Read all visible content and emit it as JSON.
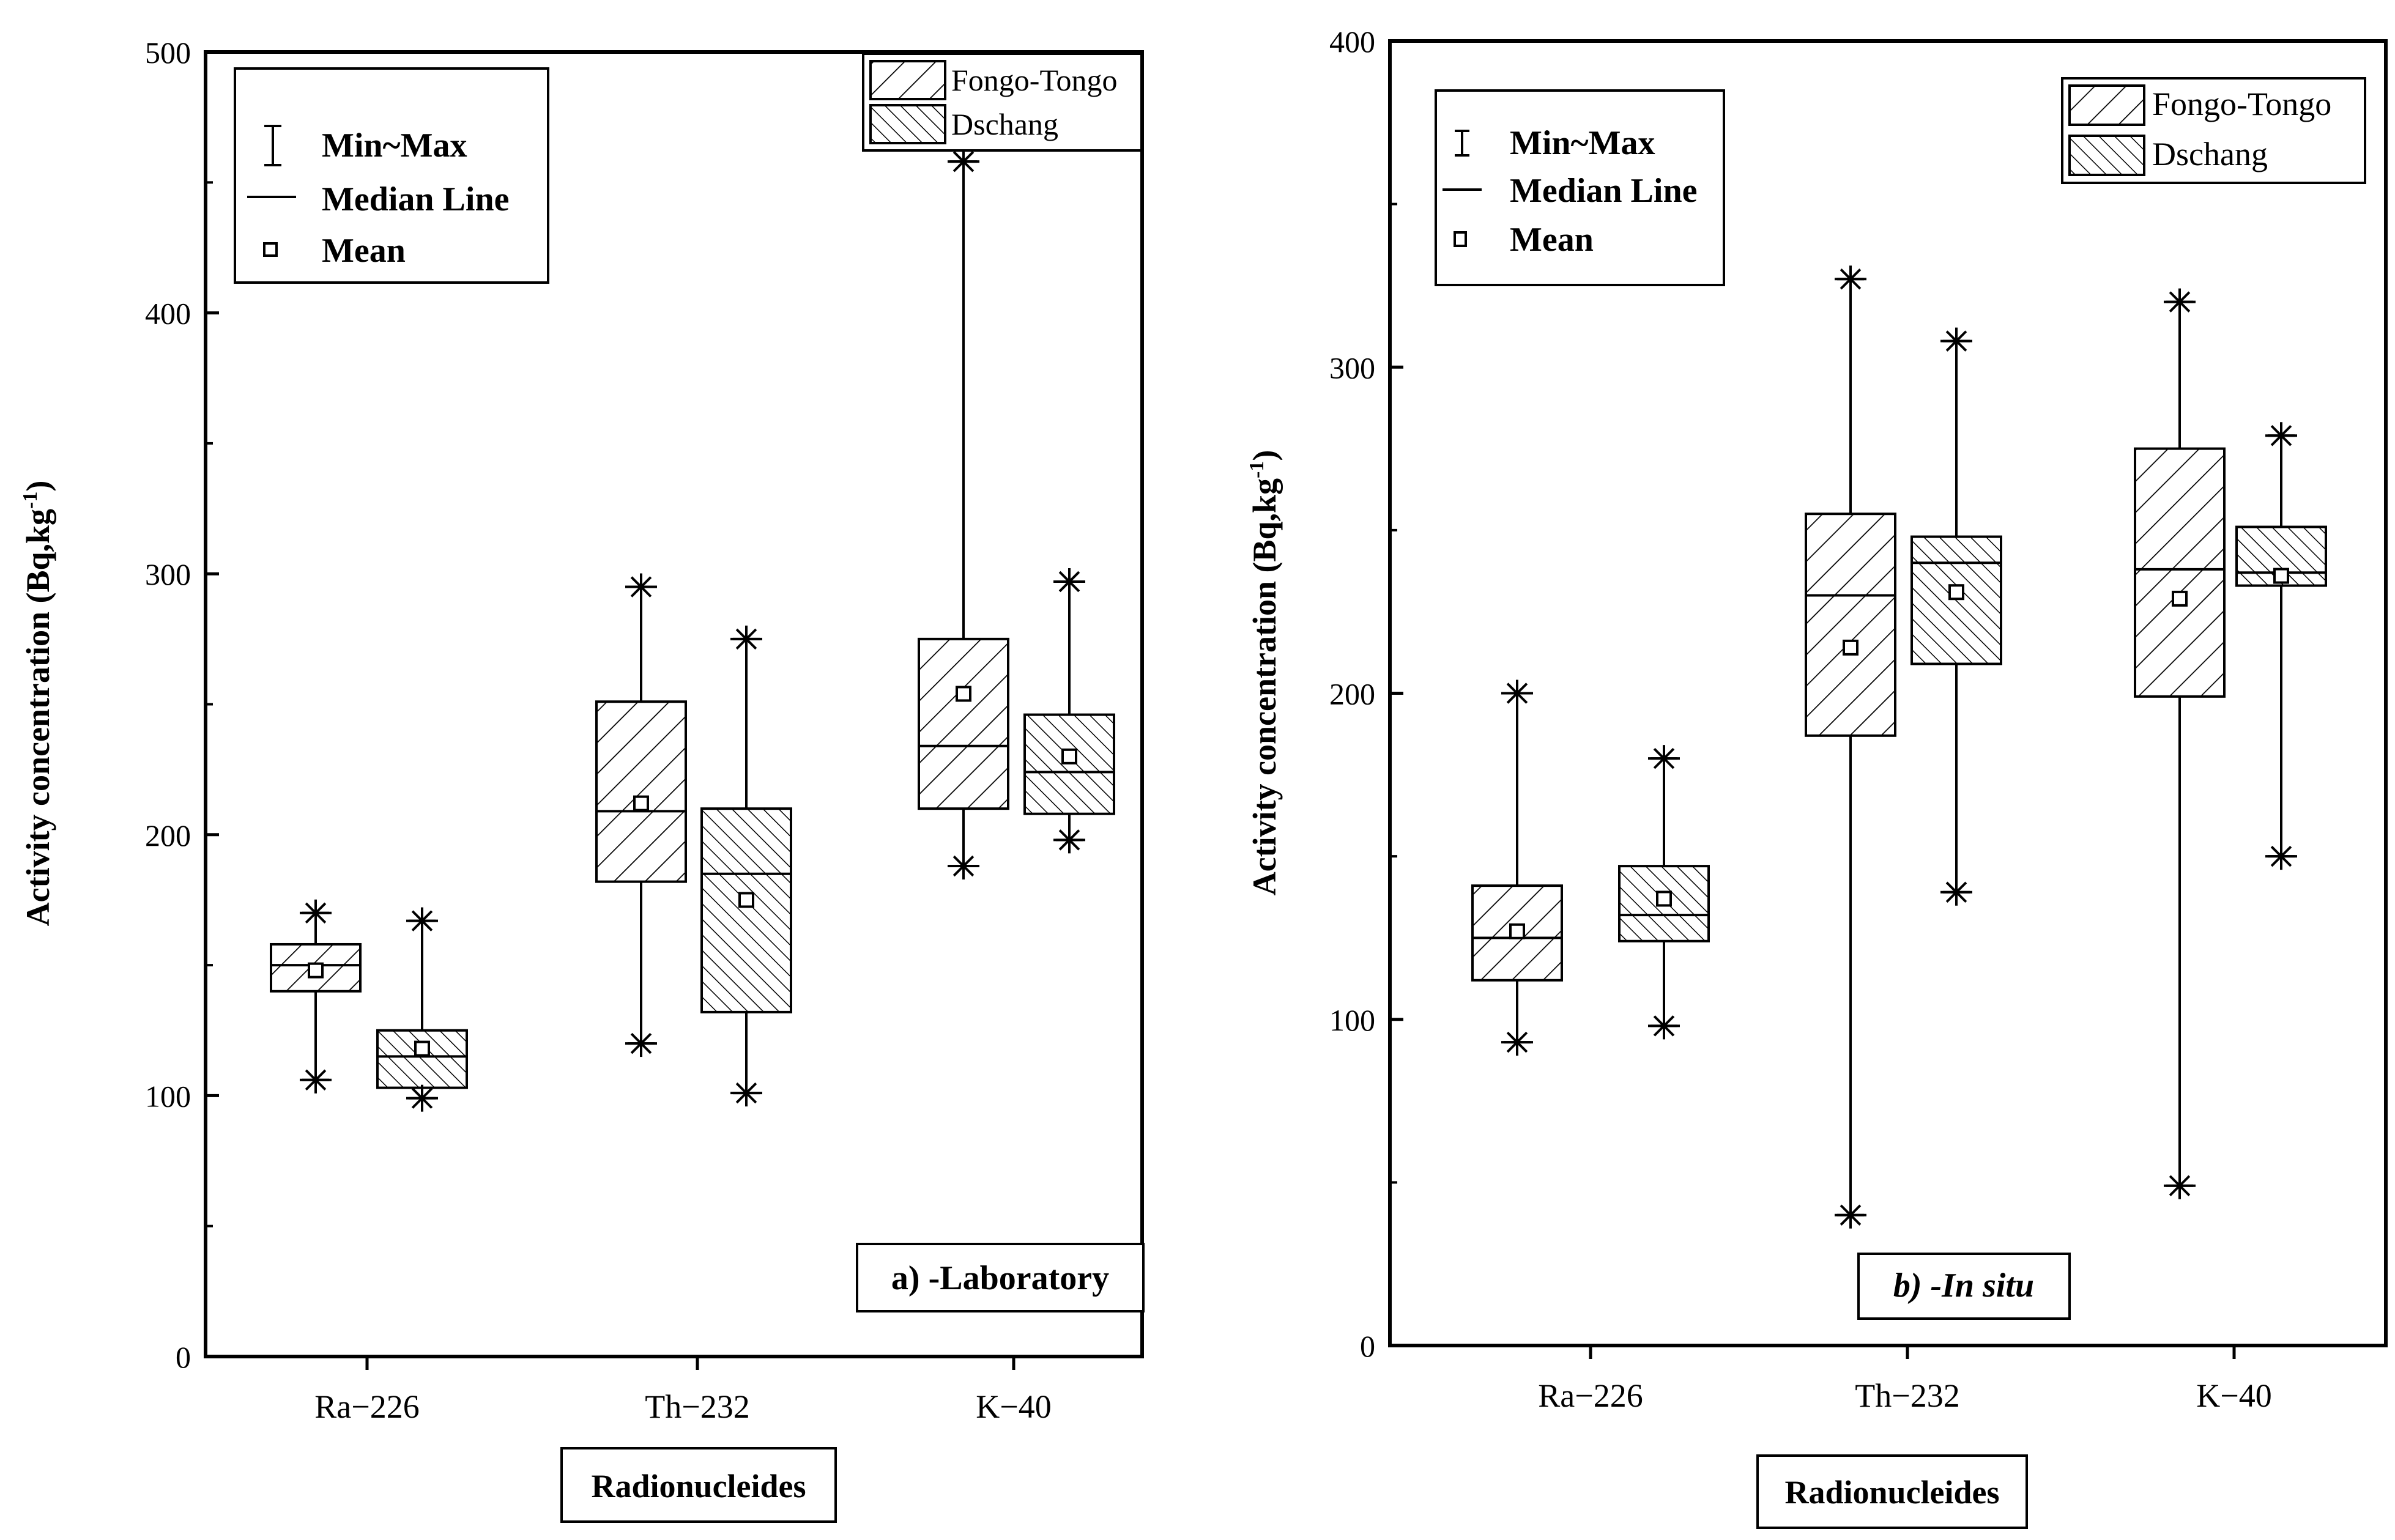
{
  "colors": {
    "ink": "#000000",
    "background": "#ffffff"
  },
  "legend_stats": {
    "minmax": "Min~Max",
    "median": "Median Line",
    "mean": "Mean"
  },
  "chart_data": [
    {
      "type": "box",
      "panel_label": "a) -Laboratory",
      "ylabel": "Activity concentration (Bq,kg",
      "ylabel_sup": "-1",
      "ylabel_close": ")",
      "xlabel": "Radionucleides",
      "ylim": [
        0,
        500
      ],
      "yticks": [
        0,
        100,
        200,
        300,
        400,
        500
      ],
      "categories": [
        "Ra-226",
        "Th-232",
        "K-40"
      ],
      "series": [
        {
          "name": "Fongo-Tongo",
          "hatch": "forward",
          "boxes": [
            {
              "min": 106,
              "q1": 140,
              "median": 150,
              "q3": 158,
              "max": 170,
              "mean": 148
            },
            {
              "min": 120,
              "q1": 182,
              "median": 209,
              "q3": 251,
              "max": 295,
              "mean": 212
            },
            {
              "min": 188,
              "q1": 210,
              "median": 234,
              "q3": 275,
              "max": 458,
              "mean": 254
            }
          ]
        },
        {
          "name": "Dschang",
          "hatch": "back",
          "boxes": [
            {
              "min": 99,
              "q1": 103,
              "median": 115,
              "q3": 125,
              "max": 167,
              "mean": 118
            },
            {
              "min": 101,
              "q1": 132,
              "median": 185,
              "q3": 210,
              "max": 275,
              "mean": 175
            },
            {
              "min": 198,
              "q1": 208,
              "median": 224,
              "q3": 246,
              "max": 297,
              "mean": 230
            }
          ]
        }
      ]
    },
    {
      "type": "box",
      "panel_label_main": "b) -",
      "panel_label_italic": "In situ",
      "ylabel": "Activity concentration (Bq,kg",
      "ylabel_sup": "-1",
      "ylabel_close": ")",
      "xlabel": "Radionucleides",
      "ylim": [
        0,
        400
      ],
      "yticks": [
        0,
        100,
        200,
        300,
        400
      ],
      "categories": [
        "Ra-226",
        "Th-232",
        "K-40"
      ],
      "series": [
        {
          "name": "Fongo-Tongo",
          "hatch": "forward",
          "boxes": [
            {
              "min": 93,
              "q1": 112,
              "median": 125,
              "q3": 141,
              "max": 200,
              "mean": 127
            },
            {
              "min": 40,
              "q1": 187,
              "median": 230,
              "q3": 255,
              "max": 327,
              "mean": 214
            },
            {
              "min": 49,
              "q1": 199,
              "median": 238,
              "q3": 275,
              "max": 320,
              "mean": 229
            }
          ]
        },
        {
          "name": "Dschang",
          "hatch": "back",
          "boxes": [
            {
              "min": 98,
              "q1": 124,
              "median": 132,
              "q3": 147,
              "max": 180,
              "mean": 137
            },
            {
              "min": 139,
              "q1": 209,
              "median": 240,
              "q3": 248,
              "max": 308,
              "mean": 231
            },
            {
              "min": 150,
              "q1": 233,
              "median": 237,
              "q3": 251,
              "max": 279,
              "mean": 236
            }
          ]
        }
      ]
    }
  ]
}
